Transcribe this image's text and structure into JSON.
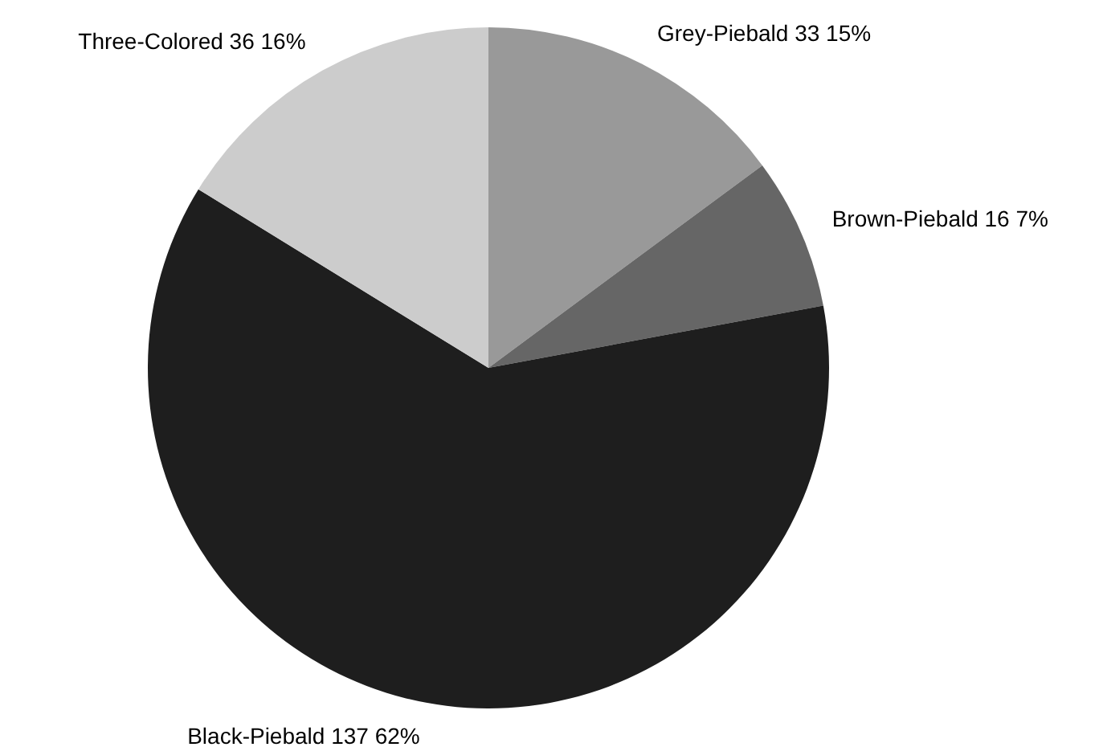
{
  "chart_data": {
    "type": "pie",
    "categories": [
      "Grey-Piebald",
      "Brown-Piebald",
      "Black-Piebald",
      "Three-Colored"
    ],
    "values": [
      33,
      16,
      137,
      36
    ],
    "value_labels": [
      "33 15%",
      "16 7%",
      "137 62%",
      "36 16%"
    ],
    "colors": [
      "#999999",
      "#666666",
      "#1e1e1e",
      "#cccccc"
    ]
  }
}
